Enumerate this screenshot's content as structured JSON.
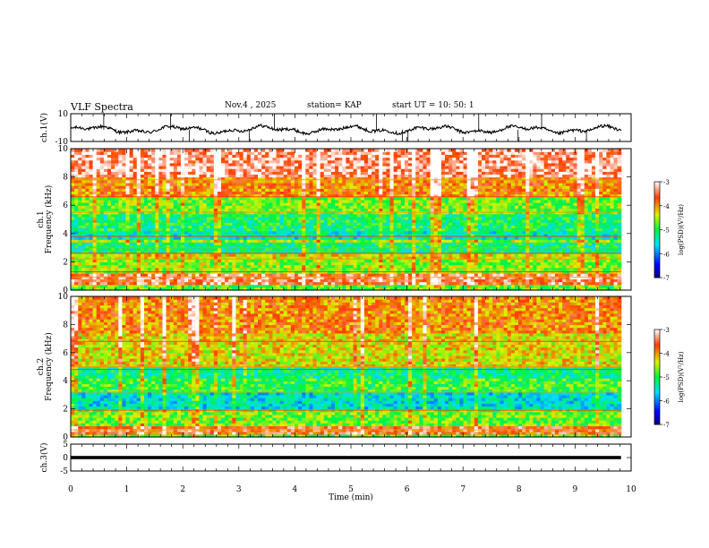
{
  "header": {
    "title": "VLF Spectra",
    "date": "Nov.4 , 2025",
    "station": "station= KAP",
    "start_ut": "start UT = 10: 50: 1"
  },
  "chart_data": {
    "type": "heatmap",
    "x_axis": {
      "label": "Time (min)",
      "range": [
        0,
        10
      ],
      "ticks": [
        "0",
        "1",
        "2",
        "3",
        "4",
        "5",
        "6",
        "7",
        "8",
        "9",
        "10"
      ],
      "data_end": 9.82
    },
    "panels": [
      {
        "id": "ch1-waveform",
        "type": "line",
        "ylabel": "ch.1(V)",
        "ylim": [
          -10,
          10
        ],
        "tick_labels": [
          "10",
          "-10"
        ],
        "baseline": -1.5,
        "wander": 1.8,
        "noise": 2.2,
        "spike_rate": 0.02,
        "spike_amplitude": 10
      },
      {
        "id": "ch1-spectrogram",
        "type": "heatmap",
        "ylabel": "ch.1",
        "ylabel2": "Frequency (kHz)",
        "ylim": [
          0,
          10
        ],
        "tick_labels": [
          "0",
          "2",
          "4",
          "6",
          "8",
          "10"
        ],
        "bands": [
          {
            "f": [
              0,
              0.4
            ],
            "v": -4.8
          },
          {
            "f": [
              0.4,
              1.2
            ],
            "v": -3.5
          },
          {
            "f": [
              1.2,
              2.2
            ],
            "v": -4.6
          },
          {
            "f": [
              2.2,
              2.6
            ],
            "v": -4.3
          },
          {
            "f": [
              2.6,
              3.4
            ],
            "v": -5.2
          },
          {
            "f": [
              3.4,
              3.7
            ],
            "v": -4.6
          },
          {
            "f": [
              3.7,
              4.2
            ],
            "v": -5.4
          },
          {
            "f": [
              4.2,
              5.5
            ],
            "v": -5.1
          },
          {
            "f": [
              5.5,
              6.6
            ],
            "v": -4.7
          },
          {
            "f": [
              6.6,
              8.0
            ],
            "v": -3.9
          },
          {
            "f": [
              8.0,
              10
            ],
            "v": -3.3
          }
        ],
        "lines_khz": [
          0.9,
          1.3,
          2.2,
          2.6,
          3.0,
          3.8,
          5.5,
          6.6,
          7.8
        ],
        "noise": 0.5,
        "burst_rate": 0.12
      },
      {
        "id": "ch2-spectrogram",
        "type": "heatmap",
        "ylabel": "ch.2",
        "ylabel2": "Frequency (kHz)",
        "ylim": [
          0,
          10
        ],
        "tick_labels": [
          "0",
          "2",
          "4",
          "6",
          "8",
          "10"
        ],
        "bands": [
          {
            "f": [
              0,
              0.3
            ],
            "v": -4.8
          },
          {
            "f": [
              0.3,
              0.8
            ],
            "v": -3.6
          },
          {
            "f": [
              0.8,
              2.0
            ],
            "v": -4.7
          },
          {
            "f": [
              2.0,
              3.2
            ],
            "v": -5.5
          },
          {
            "f": [
              3.2,
              4.3
            ],
            "v": -4.9
          },
          {
            "f": [
              4.3,
              5.0
            ],
            "v": -5.2
          },
          {
            "f": [
              5.0,
              7.5
            ],
            "v": -4.3
          },
          {
            "f": [
              7.5,
              10
            ],
            "v": -3.9
          }
        ],
        "lines_khz": [
          0.5,
          1.9,
          3.2,
          4.8,
          5.0,
          6.8
        ],
        "noise": 0.5,
        "burst_rate": 0.09
      },
      {
        "id": "ch3-waveform",
        "type": "line",
        "ylabel": "ch.3(V)",
        "ylim": [
          -5,
          5
        ],
        "tick_labels": [
          "5",
          "0",
          "-5"
        ],
        "baseline": 0,
        "band_halfwidth": 0.6
      }
    ],
    "colorbars": [
      {
        "label": "log(PSD)(V²/Hz)",
        "range": [
          -7,
          -3
        ],
        "tick_labels": [
          "-3",
          "-4",
          "-5",
          "-6",
          "-7"
        ]
      },
      {
        "label": "log(PSD)(V²/Hz)",
        "range": [
          -7,
          -3
        ],
        "tick_labels": [
          "-3",
          "-4",
          "-5",
          "-6",
          "-7"
        ]
      }
    ]
  }
}
